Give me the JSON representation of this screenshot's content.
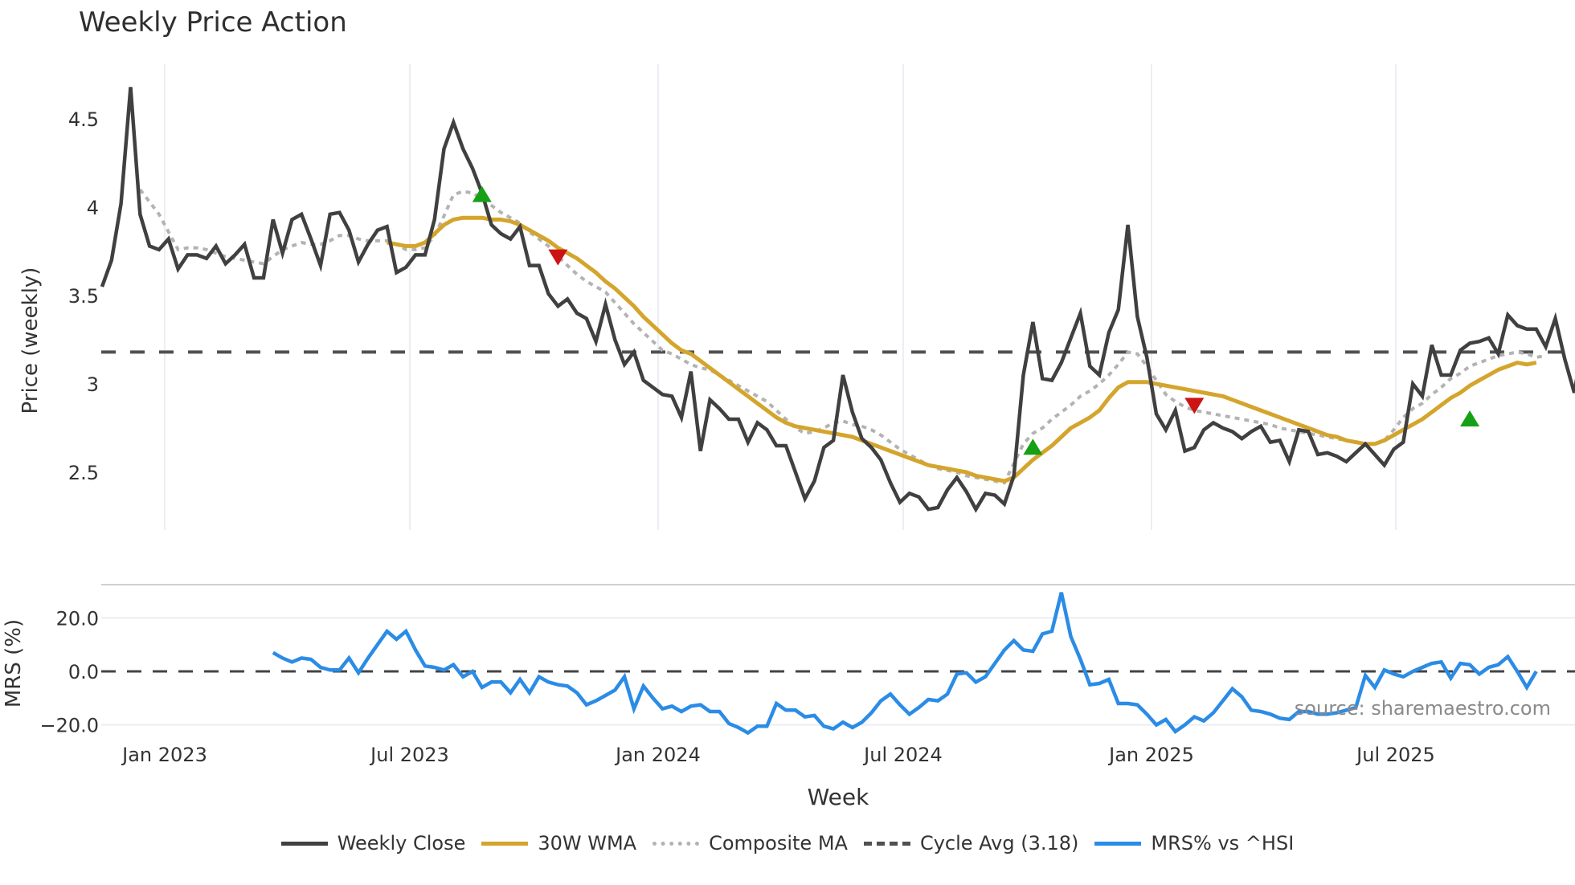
{
  "title": "Weekly Price Action",
  "colors": {
    "close": "#404040",
    "wma": "#d4a52c",
    "composite": "#b3b3b3",
    "cycle": "#505050",
    "mrs": "#2b8ce6",
    "signal_up": "#16a016",
    "signal_down": "#cc1414",
    "grid": "#eceef3",
    "separator": "#d0d0d0",
    "source": "#8a8a8a"
  },
  "chart_data": [
    {
      "type": "line",
      "title": "Weekly Price Action",
      "xlabel": "Week",
      "ylabel": "Price (weekly)",
      "ylim": [
        2.15,
        4.75
      ],
      "yticks": [
        2.5,
        3,
        3.5,
        4,
        4.5
      ],
      "ytick_labels": [
        "2.5",
        "3",
        "3.5",
        "4",
        "4.5"
      ],
      "xticks": [
        "Jan 2023",
        "Jul 2023",
        "Jan 2024",
        "Jul 2024",
        "Jan 2025",
        "Jul 2025"
      ],
      "x_start": "2022-11-14",
      "x_step": "1 week",
      "grid": {
        "x": true,
        "y": false
      },
      "cycle_avg": 3.18,
      "series": [
        {
          "name": "Weekly Close",
          "values": [
            3.55,
            3.7,
            4.02,
            4.68,
            3.96,
            3.78,
            3.76,
            3.82,
            3.65,
            3.73,
            3.73,
            3.71,
            3.78,
            3.68,
            3.73,
            3.79,
            3.6,
            3.6,
            3.93,
            3.74,
            3.93,
            3.96,
            3.82,
            3.67,
            3.96,
            3.97,
            3.87,
            3.69,
            3.79,
            3.87,
            3.89,
            3.63,
            3.66,
            3.73,
            3.73,
            3.93,
            4.33,
            4.48,
            4.33,
            4.22,
            4.08,
            3.9,
            3.85,
            3.82,
            3.89,
            3.67,
            3.67,
            3.51,
            3.44,
            3.48,
            3.4,
            3.37,
            3.24,
            3.45,
            3.25,
            3.11,
            3.18,
            3.02,
            2.98,
            2.94,
            2.93,
            2.81,
            3.07,
            2.62,
            2.91,
            2.86,
            2.8,
            2.8,
            2.67,
            2.78,
            2.74,
            2.65,
            2.65,
            2.5,
            2.35,
            2.45,
            2.64,
            2.68,
            3.05,
            2.84,
            2.69,
            2.64,
            2.57,
            2.44,
            2.33,
            2.38,
            2.36,
            2.29,
            2.3,
            2.4,
            2.47,
            2.39,
            2.29,
            2.38,
            2.37,
            2.32,
            2.48,
            3.05,
            3.35,
            3.03,
            3.02,
            3.12,
            3.26,
            3.4,
            3.1,
            3.05,
            3.29,
            3.42,
            3.9,
            3.38,
            3.15,
            2.83,
            2.74,
            2.85,
            2.62,
            2.64,
            2.74,
            2.78,
            2.75,
            2.73,
            2.69,
            2.73,
            2.76,
            2.67,
            2.68,
            2.56,
            2.74,
            2.73,
            2.6,
            2.61,
            2.59,
            2.56,
            2.61,
            2.66,
            2.6,
            2.54,
            2.63,
            2.67,
            3.0,
            2.93,
            3.22,
            3.05,
            3.05,
            3.19,
            3.23,
            3.24,
            3.26,
            3.17,
            3.39,
            3.33,
            3.31,
            3.31,
            3.21,
            3.37,
            3.14,
            2.95,
            3.25
          ]
        },
        {
          "name": "30W WMA",
          "values": [
            null,
            null,
            null,
            null,
            null,
            null,
            null,
            null,
            null,
            null,
            null,
            null,
            null,
            null,
            null,
            null,
            null,
            null,
            null,
            null,
            null,
            null,
            null,
            null,
            null,
            null,
            null,
            null,
            null,
            null,
            3.8,
            3.79,
            3.78,
            3.78,
            3.8,
            3.85,
            3.9,
            3.93,
            3.94,
            3.94,
            3.94,
            3.93,
            3.93,
            3.92,
            3.9,
            3.87,
            3.84,
            3.81,
            3.77,
            3.74,
            3.71,
            3.67,
            3.63,
            3.58,
            3.54,
            3.49,
            3.44,
            3.38,
            3.33,
            3.28,
            3.23,
            3.19,
            3.17,
            3.13,
            3.09,
            3.05,
            3.01,
            2.97,
            2.93,
            2.89,
            2.85,
            2.81,
            2.78,
            2.76,
            2.75,
            2.74,
            2.73,
            2.72,
            2.71,
            2.7,
            2.68,
            2.66,
            2.64,
            2.62,
            2.6,
            2.58,
            2.56,
            2.54,
            2.53,
            2.52,
            2.51,
            2.5,
            2.48,
            2.47,
            2.46,
            2.45,
            2.47,
            2.52,
            2.57,
            2.61,
            2.65,
            2.7,
            2.75,
            2.78,
            2.81,
            2.85,
            2.92,
            2.98,
            3.01,
            3.01,
            3.01,
            3.0,
            2.99,
            2.98,
            2.97,
            2.96,
            2.95,
            2.94,
            2.93,
            2.91,
            2.89,
            2.87,
            2.85,
            2.83,
            2.81,
            2.79,
            2.77,
            2.75,
            2.73,
            2.71,
            2.7,
            2.68,
            2.67,
            2.66,
            2.66,
            2.68,
            2.71,
            2.74,
            2.77,
            2.8,
            2.84,
            2.88,
            2.92,
            2.95,
            2.99,
            3.02,
            3.05,
            3.08,
            3.1,
            3.12,
            3.11,
            3.12
          ]
        },
        {
          "name": "Composite MA",
          "values": [
            null,
            null,
            null,
            null,
            4.1,
            4.03,
            3.96,
            3.86,
            3.76,
            3.77,
            3.77,
            3.76,
            3.74,
            3.72,
            3.71,
            3.7,
            3.69,
            3.68,
            3.72,
            3.76,
            3.78,
            3.8,
            3.79,
            3.79,
            3.81,
            3.84,
            3.84,
            3.82,
            3.81,
            3.81,
            3.81,
            3.79,
            3.76,
            3.76,
            3.77,
            3.84,
            3.95,
            4.07,
            4.09,
            4.08,
            4.05,
            4.01,
            3.97,
            3.94,
            3.91,
            3.86,
            3.82,
            3.78,
            3.72,
            3.67,
            3.62,
            3.58,
            3.55,
            3.52,
            3.46,
            3.4,
            3.34,
            3.29,
            3.24,
            3.19,
            3.17,
            3.14,
            3.11,
            3.09,
            3.08,
            3.05,
            3.02,
            2.99,
            2.96,
            2.93,
            2.9,
            2.85,
            2.8,
            2.75,
            2.72,
            2.73,
            2.75,
            2.78,
            2.79,
            2.77,
            2.76,
            2.74,
            2.71,
            2.67,
            2.63,
            2.6,
            2.57,
            2.54,
            2.52,
            2.51,
            2.5,
            2.48,
            2.47,
            2.46,
            2.45,
            2.44,
            2.55,
            2.66,
            2.72,
            2.75,
            2.8,
            2.84,
            2.88,
            2.93,
            2.96,
            3.0,
            3.05,
            3.11,
            3.18,
            3.17,
            3.1,
            3.02,
            2.94,
            2.9,
            2.87,
            2.85,
            2.84,
            2.83,
            2.82,
            2.81,
            2.8,
            2.79,
            2.78,
            2.77,
            2.75,
            2.74,
            2.73,
            2.72,
            2.71,
            2.7,
            2.69,
            2.68,
            2.67,
            2.66,
            2.66,
            2.68,
            2.74,
            2.81,
            2.86,
            2.89,
            2.94,
            2.98,
            3.03,
            3.06,
            3.1,
            3.12,
            3.14,
            3.16,
            3.17,
            3.18,
            3.17,
            3.15,
            3.16
          ]
        }
      ],
      "signals": [
        {
          "type": "buy",
          "week": 40,
          "value": 4.07
        },
        {
          "type": "sell",
          "week": 48,
          "value": 3.72
        },
        {
          "type": "buy",
          "week": 98,
          "value": 2.64
        },
        {
          "type": "sell",
          "week": 115,
          "value": 2.88
        },
        {
          "type": "buy",
          "week": 144,
          "value": 2.8
        }
      ]
    },
    {
      "type": "line",
      "title": "",
      "xlabel": "Week",
      "ylabel": "MRS (%)",
      "ylim": [
        -27,
        32
      ],
      "yticks": [
        -20,
        0,
        20
      ],
      "ytick_labels": [
        "−20.0",
        "0.0",
        "20.0"
      ],
      "zero_line": 0,
      "series": [
        {
          "name": "MRS% vs ^HSI",
          "start_week": 18,
          "values": [
            7,
            5,
            3.5,
            5,
            4.5,
            1.5,
            0.5,
            0.5,
            5,
            -0.5,
            5,
            10,
            15,
            12,
            15,
            8,
            2,
            1.5,
            0.5,
            2.5,
            -2,
            0,
            -6,
            -4,
            -4,
            -8,
            -3,
            -8,
            -2,
            -4,
            -5,
            -5.5,
            -8,
            -12.5,
            -11,
            -9,
            -7,
            -2,
            -14,
            -5.5,
            -10,
            -14,
            -13,
            -15,
            -13,
            -12.5,
            -15,
            -15,
            -19.5,
            -21,
            -23,
            -20.5,
            -20.5,
            -12,
            -14.5,
            -14.5,
            -17,
            -16.5,
            -20.5,
            -21.5,
            -19,
            -21,
            -19,
            -15.5,
            -11,
            -8.5,
            -12.5,
            -16,
            -13.5,
            -10.5,
            -11,
            -8.5,
            -1,
            -0.5,
            -4,
            -2,
            3,
            8,
            11.5,
            8,
            7.5,
            14,
            15,
            29.5,
            13,
            4.5,
            -5,
            -4.5,
            -3,
            -12,
            -12,
            -12.5,
            -16,
            -20,
            -18,
            -22.5,
            -20,
            -17,
            -18.5,
            -15.5,
            -11,
            -6.5,
            -9.5,
            -14.5,
            -15,
            -16,
            -17.5,
            -18,
            -15,
            -15,
            -16,
            -16,
            -15.5,
            -14.5,
            -13.5,
            -1.5,
            -6,
            0.5,
            -1,
            -2,
            0,
            1.5,
            3,
            3.5,
            -2.5,
            3,
            2.5,
            -1,
            1.5,
            2.5,
            5.5,
            0,
            -6,
            0
          ]
        }
      ]
    }
  ],
  "axes": {
    "price_ylabel": "Price (weekly)",
    "mrs_ylabel": "MRS (%)",
    "xlabel": "Week",
    "xticks": [
      "Jan 2023",
      "Jul 2023",
      "Jan 2024",
      "Jul 2024",
      "Jan 2025",
      "Jul 2025"
    ],
    "price_yticks": [
      "2.5",
      "3",
      "3.5",
      "4",
      "4.5"
    ],
    "mrs_yticks": [
      "20.0",
      "0.0",
      "−20.0"
    ]
  },
  "source": "source: sharemaestro.com",
  "legend": [
    {
      "label": "Weekly Close",
      "style": "solid",
      "color": "#404040"
    },
    {
      "label": "30W WMA",
      "style": "solid",
      "color": "#d4a52c"
    },
    {
      "label": "Composite MA",
      "style": "dotted",
      "color": "#b3b3b3"
    },
    {
      "label": "Cycle Avg (3.18)",
      "style": "dashed",
      "color": "#505050"
    },
    {
      "label": "MRS% vs ^HSI",
      "style": "solid",
      "color": "#2b8ce6"
    }
  ]
}
